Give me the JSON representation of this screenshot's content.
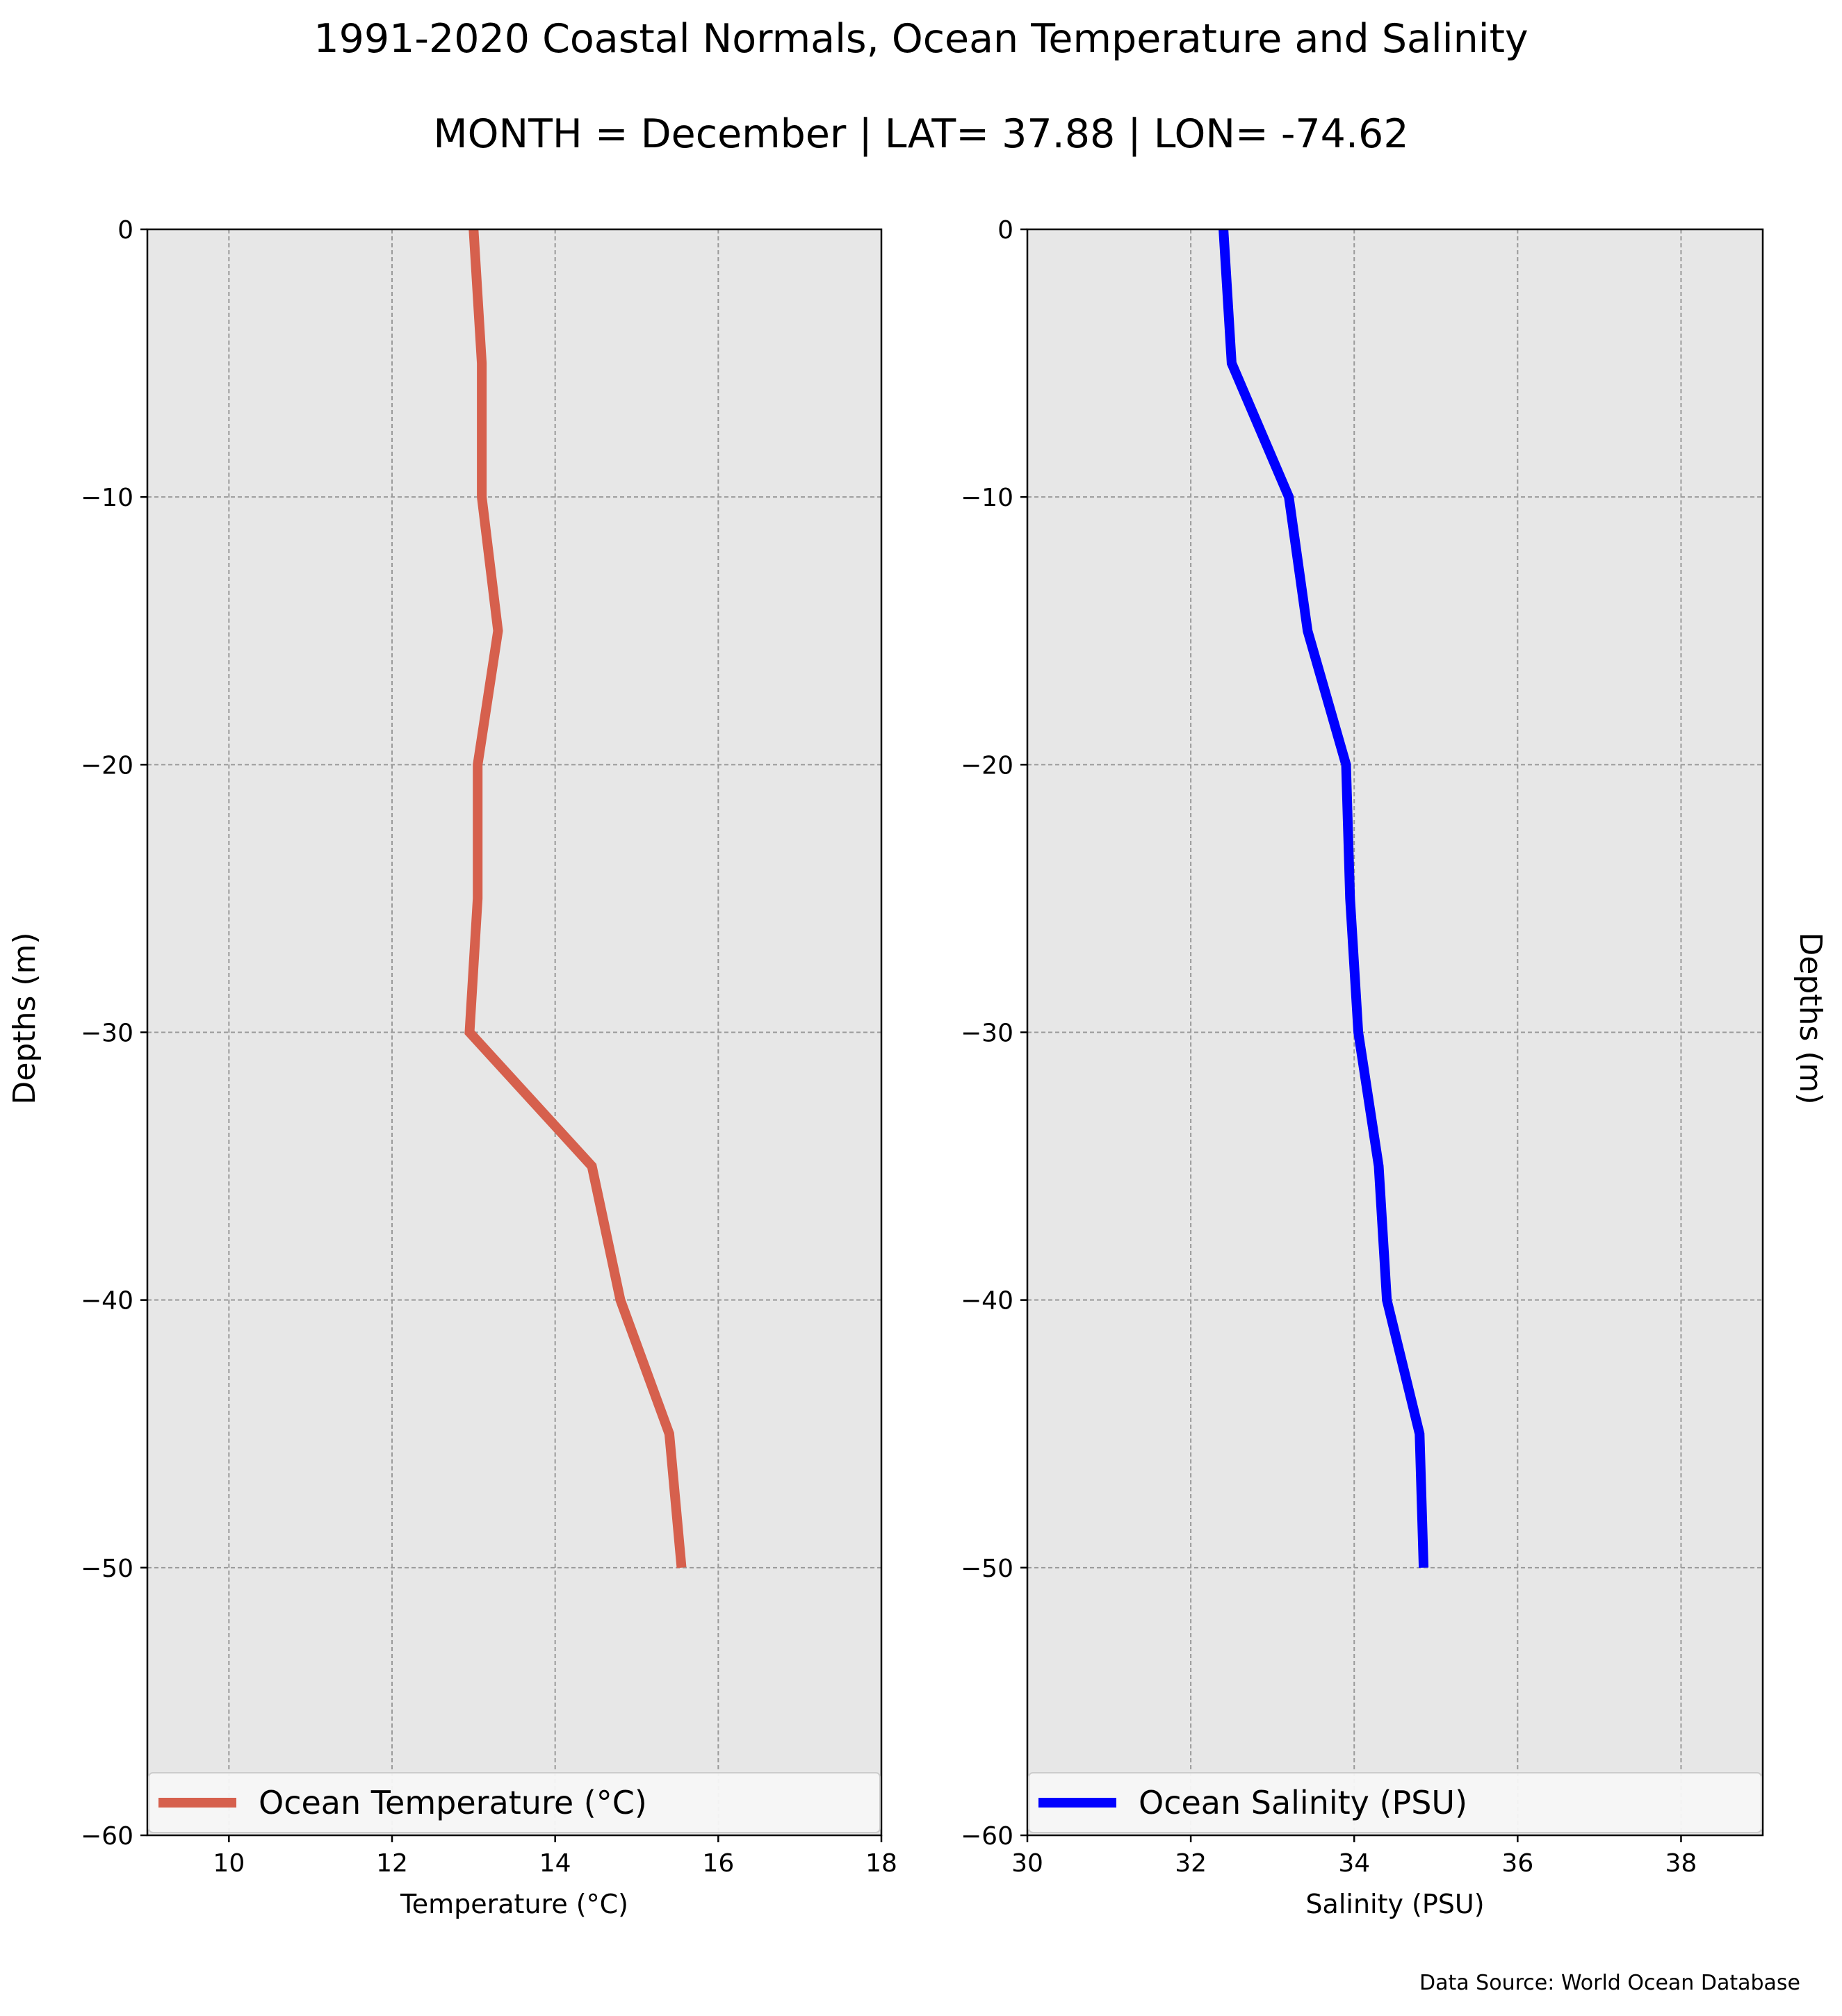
{
  "figure": {
    "title": "1991-2020 Coastal Normals, Ocean Temperature and Salinity",
    "subtitle": "MONTH = December | LAT= 37.88 | LON= -74.62",
    "source": "Data Source: World Ocean Database"
  },
  "chart_data": [
    {
      "type": "line",
      "panel": "left",
      "xlabel": "Temperature (°C)",
      "ylabel": "Depths (m)",
      "xlim": [
        9,
        18
      ],
      "ylim": [
        -60,
        0
      ],
      "xticks": [
        10,
        12,
        14,
        16,
        18
      ],
      "yticks": [
        0,
        -10,
        -20,
        -30,
        -40,
        -50,
        -60
      ],
      "grid": true,
      "legend_position": "lower-center",
      "series": [
        {
          "name": "Ocean Temperature (°C)",
          "color": "#d6604d",
          "x": [
            13.0,
            13.1,
            13.1,
            13.3,
            13.05,
            13.05,
            12.95,
            14.45,
            14.8,
            15.4,
            15.55
          ],
          "y": [
            0,
            -5,
            -10,
            -15,
            -20,
            -25,
            -30,
            -35,
            -40,
            -45,
            -50
          ]
        }
      ]
    },
    {
      "type": "line",
      "panel": "right",
      "xlabel": "Salinity (PSU)",
      "ylabel": "Depths (m)",
      "xlim": [
        30,
        39
      ],
      "ylim": [
        -60,
        0
      ],
      "xticks": [
        30,
        32,
        34,
        36,
        38
      ],
      "yticks": [
        0,
        -10,
        -20,
        -30,
        -40,
        -50,
        -60
      ],
      "grid": true,
      "legend_position": "lower-center",
      "series": [
        {
          "name": "Ocean Salinity (PSU)",
          "color": "#0000ff",
          "x": [
            32.4,
            32.5,
            33.2,
            33.43,
            33.9,
            33.95,
            34.05,
            34.3,
            34.4,
            34.8,
            34.85
          ],
          "y": [
            0,
            -5,
            -10,
            -15,
            -20,
            -25,
            -30,
            -35,
            -40,
            -45,
            -50
          ]
        }
      ]
    }
  ]
}
